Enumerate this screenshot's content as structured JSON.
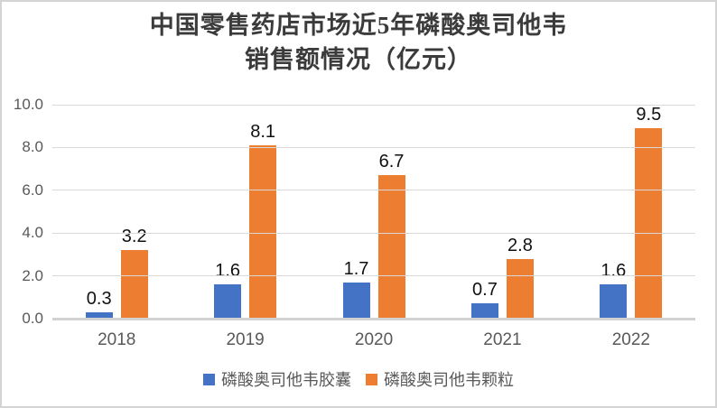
{
  "chart_data": {
    "type": "bar",
    "title": "中国零售药店市场近5年磷酸奥司他韦\n销售额情况（亿元）",
    "categories": [
      "2018",
      "2019",
      "2020",
      "2021",
      "2022"
    ],
    "series": [
      {
        "name": "磷酸奥司他韦胶囊",
        "color": "#4472C4",
        "values": [
          0.3,
          1.6,
          1.7,
          0.7,
          1.6
        ]
      },
      {
        "name": "磷酸奥司他韦颗粒",
        "color": "#ED7D31",
        "values": [
          3.2,
          8.1,
          6.7,
          2.8,
          9.5
        ]
      }
    ],
    "ylim": [
      0,
      10
    ],
    "ytick_step": 2,
    "ytick_labels": [
      "0.0",
      "2.0",
      "4.0",
      "6.0",
      "8.0",
      "10.0"
    ],
    "grid": true,
    "data_labels": true,
    "legend_position": "bottom",
    "axis_text_color": "#595959",
    "gridline_color": "#d9d9d9"
  }
}
